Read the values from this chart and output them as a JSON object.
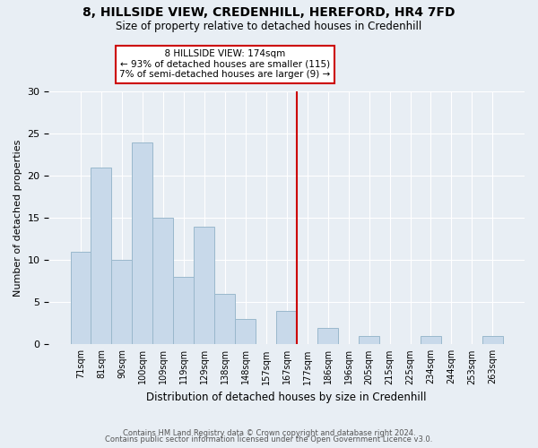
{
  "title1": "8, HILLSIDE VIEW, CREDENHILL, HEREFORD, HR4 7FD",
  "title2": "Size of property relative to detached houses in Credenhill",
  "xlabel": "Distribution of detached houses by size in Credenhill",
  "ylabel": "Number of detached properties",
  "bar_labels": [
    "71sqm",
    "81sqm",
    "90sqm",
    "100sqm",
    "109sqm",
    "119sqm",
    "129sqm",
    "138sqm",
    "148sqm",
    "157sqm",
    "167sqm",
    "177sqm",
    "186sqm",
    "196sqm",
    "205sqm",
    "215sqm",
    "225sqm",
    "234sqm",
    "244sqm",
    "253sqm",
    "263sqm"
  ],
  "bar_values": [
    11,
    21,
    10,
    24,
    15,
    8,
    14,
    6,
    3,
    0,
    4,
    0,
    2,
    0,
    1,
    0,
    0,
    1,
    0,
    0,
    1
  ],
  "bar_color": "#c8d9ea",
  "bar_edge_color": "#9ab8cc",
  "vline_color": "#cc0000",
  "annotation_title": "8 HILLSIDE VIEW: 174sqm",
  "annotation_line1": "← 93% of detached houses are smaller (115)",
  "annotation_line2": "7% of semi-detached houses are larger (9) →",
  "annotation_box_color": "white",
  "annotation_box_edge": "#cc0000",
  "ylim": [
    0,
    30
  ],
  "yticks": [
    0,
    5,
    10,
    15,
    20,
    25,
    30
  ],
  "footer1": "Contains HM Land Registry data © Crown copyright and database right 2024.",
  "footer2": "Contains public sector information licensed under the Open Government Licence v3.0.",
  "background_color": "#e8eef4",
  "grid_color": "white",
  "vline_x_index": 11
}
